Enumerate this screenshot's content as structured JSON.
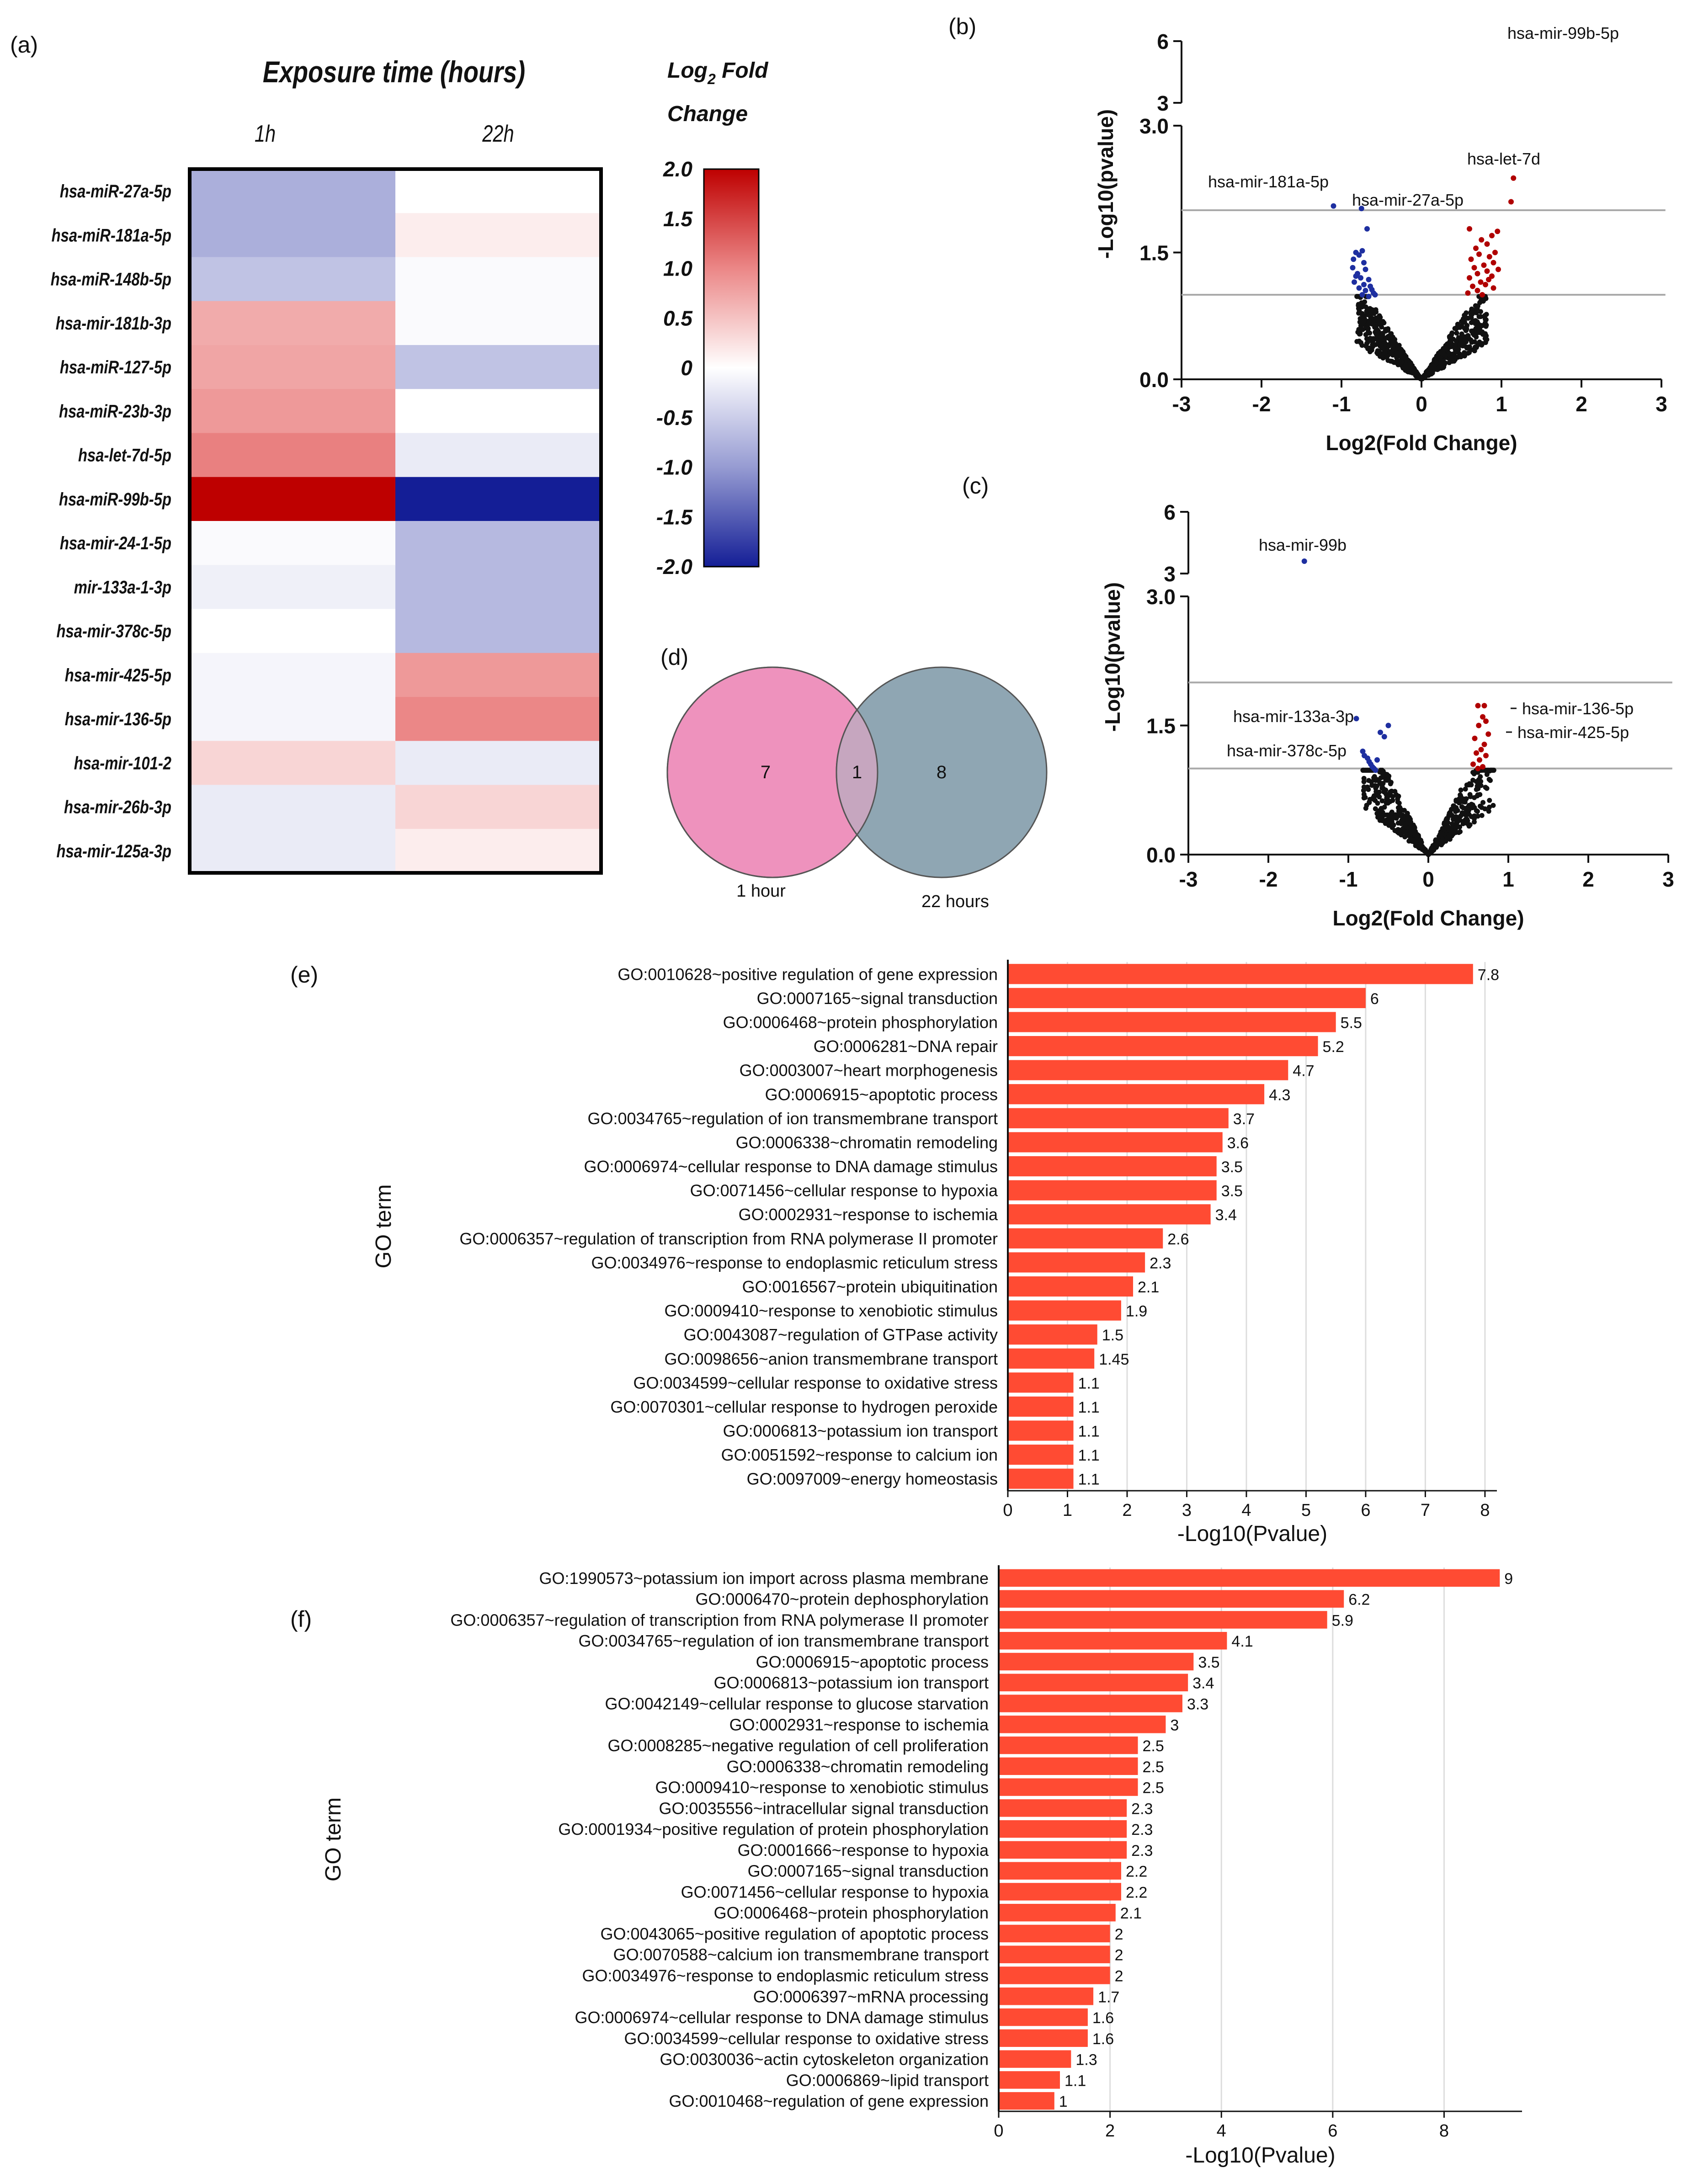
{
  "chart_data": [
    {
      "panel": "(a)",
      "type": "heatmap",
      "title": "Exposure time (hours)",
      "columns": [
        "1h",
        "22h"
      ],
      "rows": [
        "hsa-miR-27a-5p",
        "hsa-miR-181a-5p",
        "hsa-miR-148b-5p",
        "hsa-mir-181b-3p",
        "hsa-miR-127-5p",
        "hsa-miR-23b-3p",
        "hsa-let-7d-5p",
        "hsa-miR-99b-5p",
        "hsa-mir-24-1-5p",
        "mir-133a-1-3p",
        "hsa-mir-378c-5p",
        "hsa-mir-425-5p",
        "hsa-mir-136-5p",
        "hsa-mir-101-2",
        "hsa-mir-26b-3p",
        "hsa-mir-125a-3p"
      ],
      "values": [
        [
          -0.8,
          0
        ],
        [
          -0.8,
          0.15
        ],
        [
          -0.6,
          -0.05
        ],
        [
          0.7,
          -0.05
        ],
        [
          0.75,
          -0.6
        ],
        [
          0.85,
          0
        ],
        [
          1.05,
          -0.2
        ],
        [
          2.0,
          -2.0
        ],
        [
          -0.05,
          -0.7
        ],
        [
          -0.15,
          -0.7
        ],
        [
          0,
          -0.7
        ],
        [
          -0.1,
          0.85
        ],
        [
          -0.1,
          1.0
        ],
        [
          0.35,
          -0.2
        ],
        [
          -0.2,
          0.35
        ],
        [
          -0.2,
          0.15
        ]
      ],
      "legend_title": "Log2 Fold Change",
      "colorbar_ticks": [
        "2.0",
        "1.5",
        "1.0",
        "0.5",
        "0",
        "-0.5",
        "-1.0",
        "-1.5",
        "-2.0"
      ],
      "colorbar_range": [
        -2,
        2
      ]
    },
    {
      "panel": "(b)",
      "type": "scatter",
      "xlabel": "Log2(Fold Change)",
      "ylabel": "-Log10(pvalue)",
      "xlim": [
        -3,
        3
      ],
      "xticks": [
        "-3",
        "-2",
        "-1",
        "0",
        "1",
        "2",
        "3"
      ],
      "yticks_low": [
        "0.0",
        "1.5",
        "3.0"
      ],
      "yticks_high": [
        "3",
        "6"
      ],
      "thresholds": [
        1.0,
        2.0
      ],
      "labels": [
        {
          "text": "hsa-mir-99b-5p",
          "x": 2.25,
          "y": 5.7
        },
        {
          "text": "hsa-let-7d",
          "x": 1.15,
          "y": 2.38
        },
        {
          "text": "hsa-mir-181a-5p",
          "x": -1.1,
          "y": 2.05
        },
        {
          "text": "hsa-mir-27a-5p",
          "x": -0.75,
          "y": 2.02
        }
      ],
      "blue_points": [
        [
          -1.1,
          2.05
        ],
        [
          -0.75,
          2.02
        ],
        [
          -0.68,
          1.78
        ],
        [
          -0.82,
          1.5
        ],
        [
          -0.78,
          1.47
        ],
        [
          -0.74,
          1.52
        ],
        [
          -0.85,
          1.42
        ],
        [
          -0.72,
          1.38
        ],
        [
          -0.86,
          1.32
        ],
        [
          -0.7,
          1.3
        ],
        [
          -0.8,
          1.25
        ],
        [
          -0.76,
          1.2
        ],
        [
          -0.66,
          1.18
        ],
        [
          -0.84,
          1.15
        ],
        [
          -0.72,
          1.12
        ],
        [
          -0.64,
          1.1
        ],
        [
          -0.78,
          1.08
        ],
        [
          -0.7,
          1.05
        ],
        [
          -0.6,
          1.02
        ],
        [
          -0.74,
          1.0
        ],
        [
          -0.66,
          0.98
        ],
        [
          -0.82,
          1.22
        ],
        [
          -0.62,
          1.06
        ],
        [
          -0.58,
          1.0
        ]
      ],
      "red_points": [
        [
          1.15,
          2.38
        ],
        [
          1.12,
          2.1
        ],
        [
          0.6,
          1.78
        ],
        [
          0.95,
          1.75
        ],
        [
          0.88,
          1.7
        ],
        [
          0.75,
          1.65
        ],
        [
          0.82,
          1.6
        ],
        [
          0.68,
          1.55
        ],
        [
          0.92,
          1.5
        ],
        [
          0.72,
          1.48
        ],
        [
          0.85,
          1.45
        ],
        [
          0.62,
          1.42
        ],
        [
          0.9,
          1.38
        ],
        [
          0.78,
          1.35
        ],
        [
          0.66,
          1.32
        ],
        [
          0.82,
          1.28
        ],
        [
          0.7,
          1.25
        ],
        [
          0.88,
          1.22
        ],
        [
          0.6,
          1.2
        ],
        [
          0.74,
          1.15
        ],
        [
          0.8,
          1.12
        ],
        [
          0.64,
          1.1
        ],
        [
          0.9,
          1.08
        ],
        [
          0.7,
          1.05
        ],
        [
          0.58,
          1.02
        ],
        [
          0.76,
          1.0
        ],
        [
          0.84,
          1.18
        ],
        [
          0.96,
          1.3
        ]
      ],
      "cloud": {
        "slope": 1.45,
        "n": 650
      }
    },
    {
      "panel": "(c)",
      "type": "scatter",
      "xlabel": "Log2(Fold Change)",
      "ylabel": "-Log10(pvalue)",
      "xlim": [
        -3,
        3
      ],
      "xticks": [
        "-3",
        "-2",
        "-1",
        "0",
        "1",
        "2",
        "3"
      ],
      "yticks_low": [
        "0.0",
        "1.5",
        "3.0"
      ],
      "yticks_high": [
        "3",
        "6"
      ],
      "thresholds": [
        1.0,
        2.0
      ],
      "labels": [
        {
          "text": "hsa-mir-99b",
          "x": -1.55,
          "y": 3.6
        },
        {
          "text": "hsa-mir-133a-3p",
          "x": -0.9,
          "y": 1.58
        },
        {
          "text": "hsa-mir-378c-5p",
          "x": -0.8,
          "y": 1.2
        },
        {
          "text": "hsa-mir-136-5p",
          "x": 0.75,
          "y": 1.72
        },
        {
          "text": "hsa-mir-425-5p",
          "x": 0.75,
          "y": 1.4
        }
      ],
      "blue_points": [
        [
          -1.55,
          3.6
        ],
        [
          -0.9,
          1.58
        ],
        [
          -0.5,
          1.5
        ],
        [
          -0.6,
          1.42
        ],
        [
          -0.55,
          1.37
        ],
        [
          -0.82,
          1.2
        ],
        [
          -0.8,
          1.15
        ],
        [
          -0.76,
          1.12
        ],
        [
          -0.74,
          1.08
        ],
        [
          -0.72,
          1.05
        ],
        [
          -0.7,
          1.02
        ],
        [
          -0.68,
          1.0
        ],
        [
          -0.66,
          0.98
        ],
        [
          -0.64,
          1.1
        ]
      ],
      "red_points": [
        [
          0.7,
          1.73
        ],
        [
          0.62,
          1.73
        ],
        [
          0.68,
          1.6
        ],
        [
          0.72,
          1.55
        ],
        [
          0.63,
          1.5
        ],
        [
          0.75,
          1.4
        ],
        [
          0.58,
          1.35
        ],
        [
          0.7,
          1.28
        ],
        [
          0.66,
          1.22
        ],
        [
          0.6,
          1.18
        ],
        [
          0.72,
          1.15
        ],
        [
          0.64,
          1.1
        ],
        [
          0.56,
          1.05
        ],
        [
          0.68,
          1.02
        ],
        [
          0.62,
          1.0
        ]
      ],
      "cloud": {
        "slope": 1.85,
        "n": 560
      }
    },
    {
      "panel": "(d)",
      "type": "venn",
      "sets": [
        {
          "name": "1 hour",
          "only": "7"
        },
        {
          "name": "22 hours",
          "only": "8"
        }
      ],
      "intersection": "1"
    },
    {
      "panel": "(e)",
      "type": "bar",
      "orientation": "horizontal",
      "ylabel": "GO term",
      "xlabel": "-Log10(Pvalue)",
      "xlim": [
        0,
        8.2
      ],
      "xticks": [
        0,
        1,
        2,
        3,
        4,
        5,
        6,
        7,
        8
      ],
      "categories": [
        "GO:0010628~positive regulation of gene expression",
        "GO:0007165~signal transduction",
        "GO:0006468~protein phosphorylation",
        "GO:0006281~DNA repair",
        "GO:0003007~heart morphogenesis",
        "GO:0006915~apoptotic process",
        "GO:0034765~regulation of ion transmembrane transport",
        "GO:0006338~chromatin remodeling",
        "GO:0006974~cellular response to DNA damage stimulus",
        "GO:0071456~cellular response to hypoxia",
        "GO:0002931~response to ischemia",
        "GO:0006357~regulation of transcription from RNA polymerase II promoter",
        "GO:0034976~response to endoplasmic reticulum stress",
        "GO:0016567~protein ubiquitination",
        "GO:0009410~response to xenobiotic stimulus",
        "GO:0043087~regulation of GTPase activity",
        "GO:0098656~anion transmembrane transport",
        "GO:0034599~cellular response to oxidative stress",
        "GO:0070301~cellular response to hydrogen peroxide",
        "GO:0006813~potassium ion transport",
        "GO:0051592~response to calcium ion",
        "GO:0097009~energy homeostasis"
      ],
      "values": [
        7.8,
        6,
        5.5,
        5.2,
        4.7,
        4.3,
        3.7,
        3.6,
        3.5,
        3.5,
        3.4,
        2.6,
        2.3,
        2.1,
        1.9,
        1.5,
        1.45,
        1.1,
        1.1,
        1.1,
        1.1,
        1.1
      ],
      "value_labels": [
        "7.8",
        "6",
        "5.5",
        "5.2",
        "4.7",
        "4.3",
        "3.7",
        "3.6",
        "3.5",
        "3.5",
        "3.4",
        "2.6",
        "2.3",
        "2.1",
        "1.9",
        "1.5",
        "1.45",
        "1.1",
        "1.1",
        "1.1",
        "1.1",
        "1.1"
      ]
    },
    {
      "panel": "(f)",
      "type": "bar",
      "orientation": "horizontal",
      "ylabel": "GO term",
      "xlabel": "-Log10(Pvalue)",
      "xlim": [
        0,
        9.4
      ],
      "xticks": [
        0,
        2,
        4,
        6,
        8
      ],
      "categories": [
        "GO:1990573~potassium ion import across plasma membrane",
        "GO:0006470~protein dephosphorylation",
        "GO:0006357~regulation of transcription from RNA polymerase II promoter",
        "GO:0034765~regulation of ion transmembrane transport",
        "GO:0006915~apoptotic process",
        "GO:0006813~potassium ion transport",
        "GO:0042149~cellular response to glucose starvation",
        "GO:0002931~response to ischemia",
        "GO:0008285~negative regulation of cell proliferation",
        "GO:0006338~chromatin remodeling",
        "GO:0009410~response to xenobiotic stimulus",
        "GO:0035556~intracellular signal transduction",
        "GO:0001934~positive regulation of protein phosphorylation",
        "GO:0001666~response to hypoxia",
        "GO:0007165~signal transduction",
        "GO:0071456~cellular response to hypoxia",
        "GO:0006468~protein phosphorylation",
        "GO:0043065~positive regulation of apoptotic process",
        "GO:0070588~calcium ion transmembrane transport",
        "GO:0034976~response to endoplasmic reticulum stress",
        "GO:0006397~mRNA processing",
        "GO:0006974~cellular response to DNA damage stimulus",
        "GO:0034599~cellular response to oxidative stress",
        "GO:0030036~actin cytoskeleton organization",
        "GO:0006869~lipid transport",
        "GO:0010468~regulation of gene expression"
      ],
      "values": [
        9,
        6.2,
        5.9,
        4.1,
        3.5,
        3.4,
        3.3,
        3,
        2.5,
        2.5,
        2.5,
        2.3,
        2.3,
        2.3,
        2.2,
        2.2,
        2.1,
        2,
        2,
        2,
        1.7,
        1.6,
        1.6,
        1.3,
        1.1,
        1
      ],
      "value_labels": [
        "9",
        "6.2",
        "5.9",
        "4.1",
        "3.5",
        "3.4",
        "3.3",
        "3",
        "2.5",
        "2.5",
        "2.5",
        "2.3",
        "2.3",
        "2.3",
        "2.2",
        "2.2",
        "2.1",
        "2",
        "2",
        "2",
        "1.7",
        "1.6",
        "1.6",
        "1.3",
        "1.1",
        "1"
      ]
    }
  ],
  "colors": {
    "bar": "#ff4b33",
    "red_point": "#b00000",
    "blue_point": "#1e2fa0",
    "point": "#111111",
    "venn_left": "#ee92bd",
    "venn_right": "#8fa6b3",
    "venn_mid": "#c6a6bf",
    "threshold": "#aaaaaa"
  }
}
